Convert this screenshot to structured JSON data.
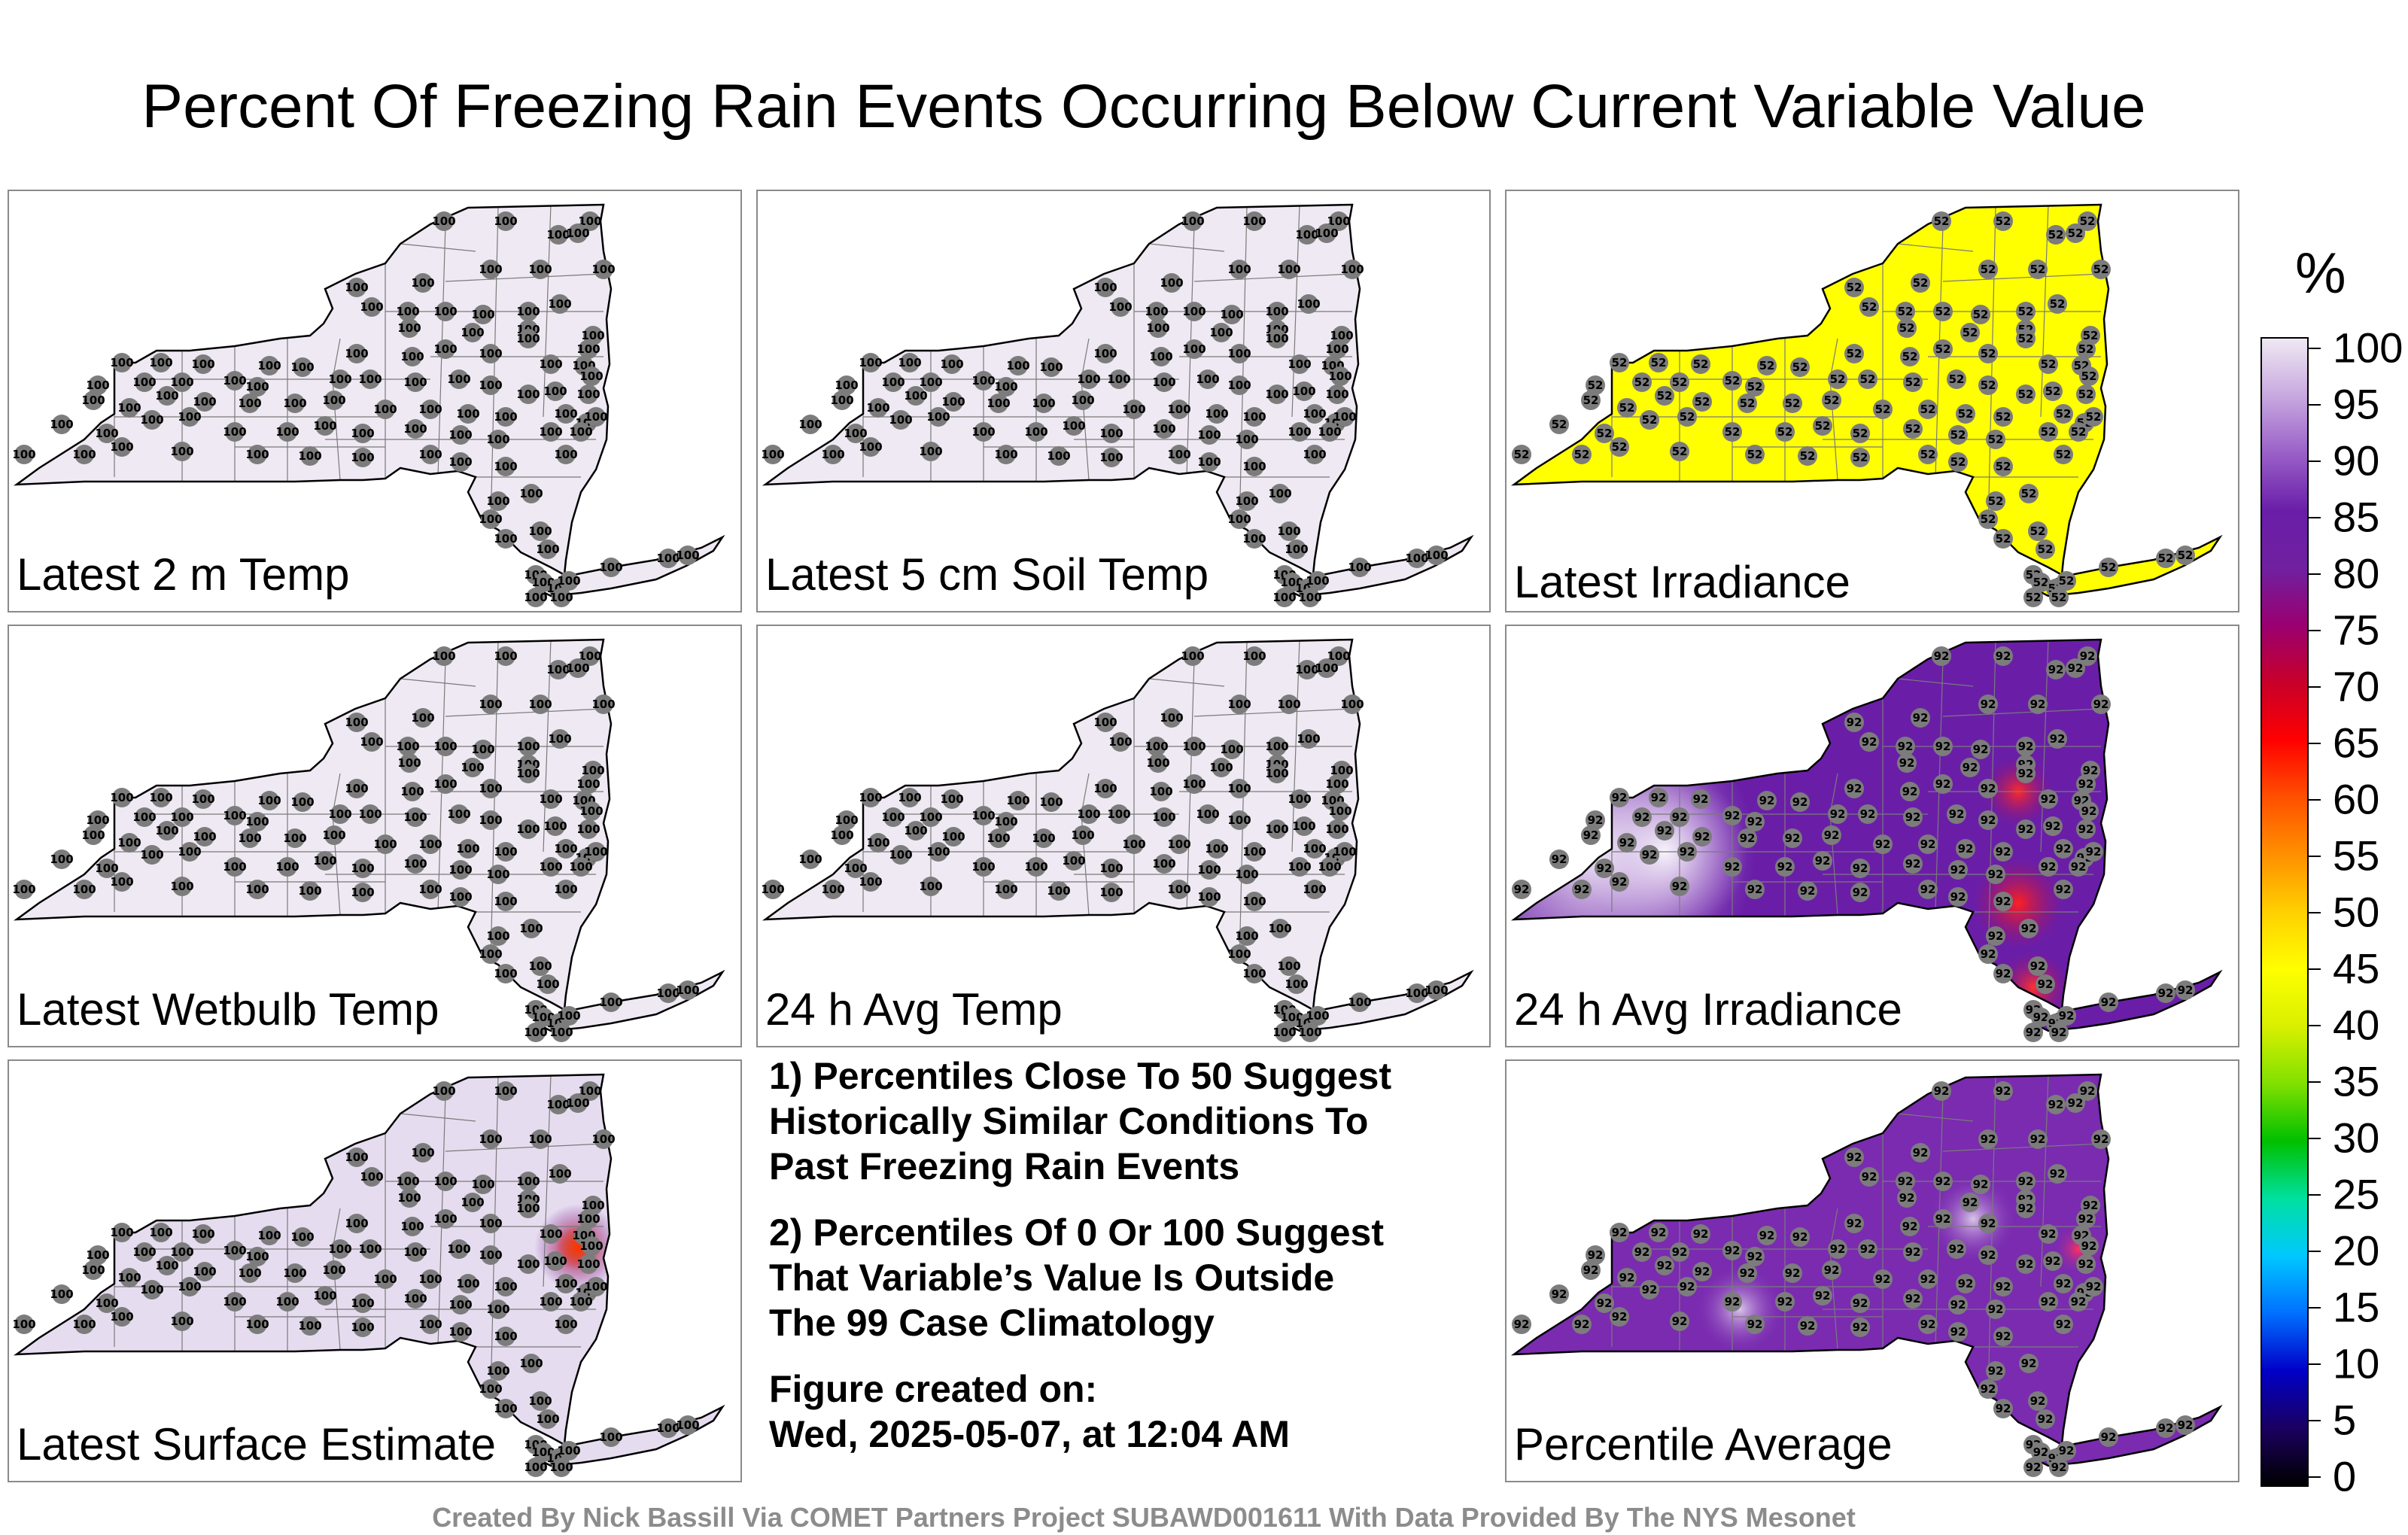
{
  "title": "Percent Of Freezing Rain Events Occurring Below Current Variable Value",
  "panels": [
    {
      "label": "Latest 2 m Temp",
      "fill": "#efe9f3",
      "value": "100",
      "hotspot": null
    },
    {
      "label": "Latest 5 cm Soil Temp",
      "fill": "#efe9f3",
      "value": "100",
      "hotspot": null
    },
    {
      "label": "Latest Irradiance",
      "fill": "#ffff00",
      "value": "52",
      "hotspot": null
    },
    {
      "label": "Latest Wetbulb Temp",
      "fill": "#efe9f3",
      "value": "100",
      "hotspot": null
    },
    {
      "label": "24 h Avg Temp",
      "fill": "#efe9f3",
      "value": "100",
      "hotspot": null
    },
    {
      "label": "24 h Avg Irradiance",
      "fill": "#6a1ea8",
      "value": "92",
      "hotspot": "irradiance"
    },
    {
      "label": "Latest Surface Estimate",
      "fill": "#e6dcef",
      "value": "100",
      "hotspot": "surface"
    },
    {
      "label": "Percentile Average",
      "fill": "#7a2bb0",
      "value": "92",
      "hotspot": "average"
    }
  ],
  "notes": {
    "note1_line1": "1) Percentiles Close To 50 Suggest",
    "note1_line2": "Historically Similar Conditions To",
    "note1_line3": "Past Freezing Rain Events",
    "note2_line1": "2) Percentiles Of 0 Or 100 Suggest",
    "note2_line2": "That Variable’s Value Is Outside",
    "note2_line3": "The 99 Case Climatology",
    "created_label": "Figure created on:",
    "created_value": "Wed, 2025-05-07, at 12:04 AM"
  },
  "colorbar": {
    "title": "%",
    "ticks": [
      "100",
      "95",
      "90",
      "85",
      "80",
      "75",
      "70",
      "65",
      "60",
      "55",
      "50",
      "45",
      "40",
      "35",
      "30",
      "25",
      "20",
      "15",
      "10",
      "5",
      "0"
    ],
    "colors": [
      "#000000",
      "#1a0060",
      "#0000c8",
      "#0070ff",
      "#00c8ff",
      "#00e0a0",
      "#00c000",
      "#80e000",
      "#d8f000",
      "#ffff00",
      "#ffd000",
      "#ff9000",
      "#ff5000",
      "#ff0000",
      "#c8002a",
      "#9a0070",
      "#7020a0",
      "#6a1ea8",
      "#9a60c8",
      "#c8a8e0",
      "#efe9f3"
    ]
  },
  "credit": "Created By Nick Bassill Via COMET Partners Project SUBAWD001611 With Data Provided By The NYS Mesonet"
}
